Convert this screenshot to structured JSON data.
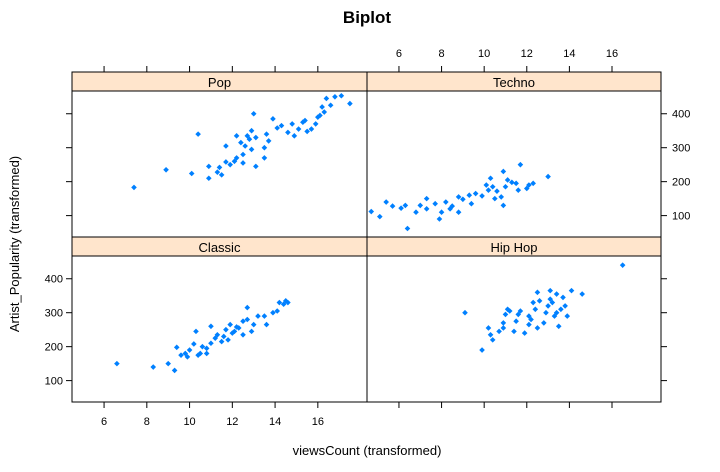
{
  "chart_data": {
    "type": "scatter",
    "title": "Biplot",
    "xlabel": "viewsCount (transformed)",
    "ylabel": "Artist_Popularity (transformed)",
    "xlim": [
      4.5,
      18.3
    ],
    "ylim": [
      37,
      467
    ],
    "xticks": [
      6,
      8,
      10,
      12,
      14,
      16
    ],
    "yticks": [
      100,
      200,
      300,
      400
    ],
    "point_color": "#0080ff",
    "strip_color": "#ffe5cc",
    "panels": [
      {
        "name": "Pop",
        "points": [
          [
            7.4,
            183
          ],
          [
            8.9,
            235
          ],
          [
            10.1,
            224
          ],
          [
            10.4,
            340
          ],
          [
            10.9,
            210
          ],
          [
            10.9,
            245
          ],
          [
            11.3,
            228
          ],
          [
            11.4,
            242
          ],
          [
            11.5,
            220
          ],
          [
            11.7,
            258
          ],
          [
            11.7,
            305
          ],
          [
            11.9,
            250
          ],
          [
            12.1,
            260
          ],
          [
            12.2,
            270
          ],
          [
            12.2,
            335
          ],
          [
            12.4,
            315
          ],
          [
            12.5,
            255
          ],
          [
            12.5,
            280
          ],
          [
            12.6,
            305
          ],
          [
            12.7,
            335
          ],
          [
            12.8,
            325
          ],
          [
            12.9,
            350
          ],
          [
            12.9,
            295
          ],
          [
            13.0,
            400
          ],
          [
            13.1,
            330
          ],
          [
            13.1,
            245
          ],
          [
            13.5,
            270
          ],
          [
            13.5,
            300
          ],
          [
            13.6,
            340
          ],
          [
            13.7,
            320
          ],
          [
            13.9,
            385
          ],
          [
            14.1,
            358
          ],
          [
            14.3,
            365
          ],
          [
            14.6,
            345
          ],
          [
            14.8,
            370
          ],
          [
            14.9,
            335
          ],
          [
            15.1,
            355
          ],
          [
            15.3,
            375
          ],
          [
            15.4,
            380
          ],
          [
            15.5,
            348
          ],
          [
            15.7,
            355
          ],
          [
            15.9,
            370
          ],
          [
            16.0,
            390
          ],
          [
            16.1,
            395
          ],
          [
            16.2,
            420
          ],
          [
            16.3,
            405
          ],
          [
            16.4,
            445
          ],
          [
            16.6,
            425
          ],
          [
            16.8,
            450
          ],
          [
            17.1,
            453
          ],
          [
            17.5,
            430
          ]
        ]
      },
      {
        "name": "Techno",
        "points": [
          [
            4.7,
            112
          ],
          [
            5.1,
            97
          ],
          [
            5.4,
            140
          ],
          [
            5.7,
            128
          ],
          [
            6.1,
            122
          ],
          [
            6.3,
            130
          ],
          [
            6.4,
            62
          ],
          [
            6.8,
            110
          ],
          [
            7.0,
            130
          ],
          [
            7.3,
            120
          ],
          [
            7.3,
            150
          ],
          [
            7.7,
            135
          ],
          [
            7.9,
            90
          ],
          [
            8.0,
            110
          ],
          [
            8.2,
            140
          ],
          [
            8.4,
            120
          ],
          [
            8.5,
            128
          ],
          [
            8.8,
            155
          ],
          [
            8.8,
            110
          ],
          [
            9.0,
            148
          ],
          [
            9.3,
            160
          ],
          [
            9.4,
            135
          ],
          [
            9.6,
            165
          ],
          [
            9.9,
            158
          ],
          [
            10.1,
            190
          ],
          [
            10.2,
            175
          ],
          [
            10.3,
            210
          ],
          [
            10.4,
            185
          ],
          [
            10.5,
            150
          ],
          [
            10.6,
            172
          ],
          [
            10.8,
            155
          ],
          [
            10.9,
            130
          ],
          [
            10.9,
            230
          ],
          [
            11.0,
            185
          ],
          [
            11.1,
            205
          ],
          [
            11.3,
            198
          ],
          [
            11.5,
            195
          ],
          [
            11.6,
            175
          ],
          [
            11.7,
            250
          ],
          [
            12.0,
            180
          ],
          [
            12.1,
            190
          ],
          [
            12.3,
            195
          ],
          [
            13.0,
            215
          ]
        ]
      },
      {
        "name": "Classic",
        "points": [
          [
            6.6,
            150
          ],
          [
            8.3,
            140
          ],
          [
            9.0,
            150
          ],
          [
            9.3,
            130
          ],
          [
            9.4,
            198
          ],
          [
            9.6,
            175
          ],
          [
            9.8,
            180
          ],
          [
            9.9,
            170
          ],
          [
            10.0,
            190
          ],
          [
            10.2,
            208
          ],
          [
            10.3,
            245
          ],
          [
            10.4,
            175
          ],
          [
            10.5,
            180
          ],
          [
            10.6,
            200
          ],
          [
            10.8,
            195
          ],
          [
            10.8,
            180
          ],
          [
            11.0,
            210
          ],
          [
            11.0,
            260
          ],
          [
            11.2,
            225
          ],
          [
            11.3,
            235
          ],
          [
            11.5,
            215
          ],
          [
            11.6,
            230
          ],
          [
            11.7,
            250
          ],
          [
            11.8,
            220
          ],
          [
            11.9,
            265
          ],
          [
            12.0,
            240
          ],
          [
            12.1,
            245
          ],
          [
            12.2,
            258
          ],
          [
            12.3,
            255
          ],
          [
            12.5,
            235
          ],
          [
            12.5,
            275
          ],
          [
            12.7,
            280
          ],
          [
            12.7,
            315
          ],
          [
            12.9,
            245
          ],
          [
            13.0,
            265
          ],
          [
            13.2,
            290
          ],
          [
            13.5,
            290
          ],
          [
            13.6,
            265
          ],
          [
            13.9,
            300
          ],
          [
            14.1,
            305
          ],
          [
            14.2,
            330
          ],
          [
            14.4,
            325
          ],
          [
            14.5,
            335
          ],
          [
            14.6,
            330
          ]
        ]
      },
      {
        "name": "Hip Hop",
        "points": [
          [
            9.1,
            300
          ],
          [
            9.9,
            190
          ],
          [
            10.2,
            255
          ],
          [
            10.3,
            235
          ],
          [
            10.4,
            220
          ],
          [
            10.7,
            245
          ],
          [
            10.9,
            270
          ],
          [
            10.9,
            255
          ],
          [
            11.0,
            295
          ],
          [
            11.1,
            310
          ],
          [
            11.2,
            305
          ],
          [
            11.4,
            245
          ],
          [
            11.5,
            275
          ],
          [
            11.6,
            295
          ],
          [
            11.7,
            305
          ],
          [
            11.9,
            240
          ],
          [
            12.1,
            265
          ],
          [
            12.1,
            290
          ],
          [
            12.2,
            280
          ],
          [
            12.3,
            330
          ],
          [
            12.4,
            310
          ],
          [
            12.5,
            255
          ],
          [
            12.5,
            360
          ],
          [
            12.6,
            335
          ],
          [
            12.8,
            270
          ],
          [
            12.9,
            300
          ],
          [
            13.0,
            320
          ],
          [
            13.1,
            340
          ],
          [
            13.1,
            365
          ],
          [
            13.2,
            330
          ],
          [
            13.3,
            290
          ],
          [
            13.4,
            355
          ],
          [
            13.4,
            300
          ],
          [
            13.5,
            260
          ],
          [
            13.6,
            310
          ],
          [
            13.7,
            345
          ],
          [
            13.8,
            320
          ],
          [
            13.9,
            290
          ],
          [
            14.1,
            365
          ],
          [
            14.6,
            355
          ],
          [
            16.5,
            440
          ]
        ]
      }
    ]
  }
}
